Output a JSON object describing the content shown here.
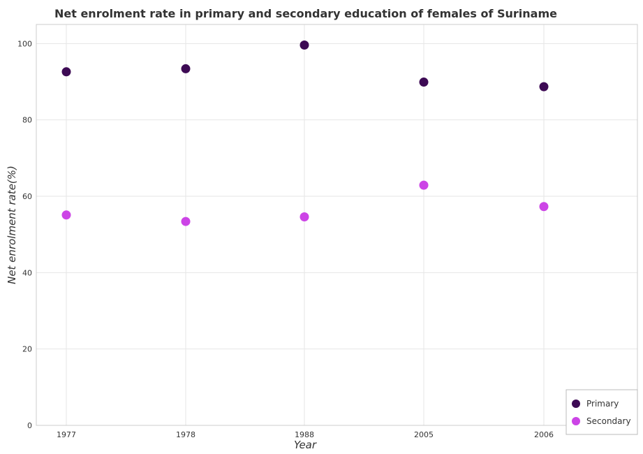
{
  "chart_data": {
    "type": "scatter",
    "title": "Net enrolment rate in primary and secondary education of females of Suriname",
    "xlabel": "Year",
    "ylabel": "Net enrolment rate(%)",
    "categories": [
      "1977",
      "1978",
      "1988",
      "2005",
      "2006"
    ],
    "yticks": [
      "0",
      "20",
      "40",
      "60",
      "80",
      "100"
    ],
    "ylim": [
      0,
      105
    ],
    "grid": true,
    "legend_position": "bottom-right",
    "series": [
      {
        "name": "Primary",
        "color": "#3d0a54",
        "values": [
          92.6,
          93.4,
          99.6,
          89.9,
          88.7
        ]
      },
      {
        "name": "Secondary",
        "color": "#cc44e6",
        "values": [
          55.1,
          53.4,
          54.6,
          62.9,
          57.3
        ]
      }
    ]
  }
}
